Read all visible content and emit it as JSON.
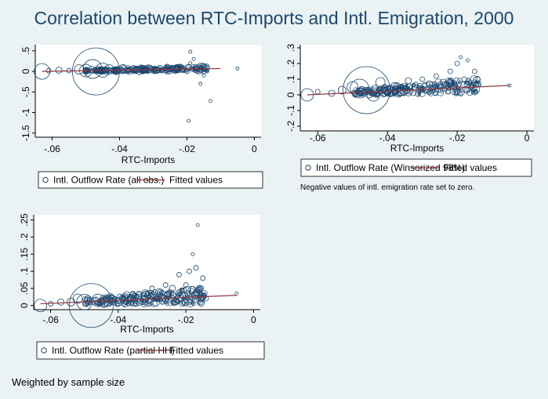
{
  "title": "Correlation between RTC-Imports and Intl. Emigration, 2000",
  "footnote": "Weighted by sample size",
  "colors": {
    "background": "#eaf2f3",
    "title": "#1a476f",
    "markers": "#1a476f",
    "fit_line": "#90353b",
    "plot_bg": "#ffffff"
  },
  "chart_data": [
    {
      "type": "scatter",
      "xlabel": "RTC-Imports",
      "ylabel": "",
      "xlim": [
        -0.065,
        0.002
      ],
      "ylim": [
        -1.6,
        0.65
      ],
      "xticks": [
        -0.06,
        -0.04,
        -0.02,
        0
      ],
      "xtick_labels": [
        "-.06",
        "-.04",
        "-.02",
        "0"
      ],
      "yticks": [
        0.5,
        0,
        -0.5,
        -1,
        -1.5
      ],
      "ytick_labels": [
        ".5",
        "0",
        "-.5",
        "-1",
        "-1.5"
      ],
      "series": [
        {
          "name": "Intl. Outflow Rate (all obs.)",
          "kind": "scatter",
          "points": [
            [
              -0.063,
              0.0,
              10
            ],
            [
              -0.061,
              0.02,
              3
            ],
            [
              -0.058,
              0.03,
              4
            ],
            [
              -0.055,
              0.02,
              3
            ],
            [
              -0.052,
              0.05,
              6
            ],
            [
              -0.05,
              0.02,
              8
            ],
            [
              -0.048,
              0.06,
              12
            ],
            [
              -0.047,
              0.0,
              30
            ],
            [
              -0.045,
              0.03,
              9
            ],
            [
              -0.043,
              0.05,
              6
            ],
            [
              -0.041,
              0.02,
              5
            ],
            [
              -0.039,
              0.07,
              5
            ],
            [
              -0.036,
              0.06,
              4
            ],
            [
              -0.033,
              0.05,
              4
            ],
            [
              -0.031,
              0.1,
              3
            ],
            [
              -0.028,
              0.07,
              4
            ],
            [
              -0.026,
              0.1,
              3
            ],
            [
              -0.024,
              0.06,
              3
            ],
            [
              -0.022,
              0.12,
              3
            ],
            [
              -0.021,
              0.05,
              4
            ],
            [
              -0.02,
              0.0,
              3
            ],
            [
              -0.019,
              0.2,
              2
            ],
            [
              -0.019,
              0.48,
              2
            ],
            [
              -0.018,
              0.3,
              2
            ],
            [
              -0.017,
              0.08,
              3
            ],
            [
              -0.016,
              0.15,
              3
            ],
            [
              -0.015,
              -0.1,
              2
            ],
            [
              -0.016,
              -0.3,
              2
            ],
            [
              -0.014,
              0.0,
              2
            ],
            [
              -0.013,
              -0.72,
              2
            ],
            [
              -0.0195,
              -1.2,
              2
            ],
            [
              -0.005,
              0.07,
              2
            ]
          ]
        },
        {
          "name": "Fitted values",
          "kind": "line",
          "points": [
            [
              -0.063,
              0.0
            ],
            [
              -0.01,
              0.07
            ]
          ]
        }
      ],
      "legend_position": "bottom"
    },
    {
      "type": "scatter",
      "xlabel": "RTC-Imports",
      "ylabel": "",
      "xlim": [
        -0.065,
        0.002
      ],
      "ylim": [
        -0.23,
        0.32
      ],
      "xticks": [
        -0.06,
        -0.04,
        -0.02,
        0
      ],
      "xtick_labels": [
        "-.06",
        "-.04",
        "-.02",
        "0"
      ],
      "yticks": [
        0.3,
        0.2,
        0.1,
        0,
        -0.1,
        -0.2
      ],
      "ytick_labels": [
        ".3",
        ".2",
        ".1",
        "0",
        "-.1",
        "-.2"
      ],
      "series": [
        {
          "name": "Intl. Outflow Rate (Winsorized 98%)",
          "kind": "scatter",
          "points": [
            [
              -0.063,
              0.0,
              8
            ],
            [
              -0.06,
              0.02,
              3
            ],
            [
              -0.056,
              0.01,
              4
            ],
            [
              -0.053,
              0.03,
              5
            ],
            [
              -0.05,
              0.05,
              7
            ],
            [
              -0.048,
              0.04,
              12
            ],
            [
              -0.046,
              0.03,
              30
            ],
            [
              -0.044,
              0.0,
              8
            ],
            [
              -0.042,
              0.08,
              6
            ],
            [
              -0.04,
              0.03,
              5
            ],
            [
              -0.038,
              0.06,
              4
            ],
            [
              -0.036,
              0.02,
              5
            ],
            [
              -0.034,
              0.09,
              4
            ],
            [
              -0.032,
              0.05,
              4
            ],
            [
              -0.03,
              0.1,
              3
            ],
            [
              -0.028,
              0.07,
              4
            ],
            [
              -0.026,
              0.12,
              3
            ],
            [
              -0.024,
              0.08,
              4
            ],
            [
              -0.022,
              0.15,
              3
            ],
            [
              -0.021,
              0.05,
              4
            ],
            [
              -0.02,
              0.2,
              3
            ],
            [
              -0.019,
              0.24,
              2
            ],
            [
              -0.018,
              0.1,
              3
            ],
            [
              -0.017,
              0.22,
              2
            ],
            [
              -0.016,
              0.05,
              3
            ],
            [
              -0.015,
              0.15,
              3
            ],
            [
              -0.014,
              0.08,
              2
            ],
            [
              -0.005,
              0.06,
              2
            ]
          ]
        },
        {
          "name": "Fitted values",
          "kind": "line",
          "points": [
            [
              -0.063,
              0.0
            ],
            [
              -0.005,
              0.06
            ]
          ]
        }
      ],
      "legend_position": "bottom",
      "note": "Negative values of intl. emigration rate set to zero."
    },
    {
      "type": "scatter",
      "xlabel": "RTC-Imports",
      "ylabel": "",
      "xlim": [
        -0.065,
        0.002
      ],
      "ylim": [
        -0.012,
        0.265
      ],
      "xticks": [
        -0.06,
        -0.04,
        -0.02,
        0
      ],
      "xtick_labels": [
        "-.06",
        "-.04",
        "-.02",
        "0"
      ],
      "yticks": [
        0,
        0.05,
        0.1,
        0.15,
        0.2,
        0.25
      ],
      "ytick_labels": [
        "0",
        ".05",
        ".1",
        ".15",
        ".2",
        ".25"
      ],
      "series": [
        {
          "name": "Intl. Outflow Rate (partial HH)",
          "kind": "scatter",
          "points": [
            [
              -0.063,
              0.0,
              8
            ],
            [
              -0.06,
              0.005,
              3
            ],
            [
              -0.057,
              0.01,
              4
            ],
            [
              -0.054,
              0.01,
              5
            ],
            [
              -0.052,
              0.02,
              6
            ],
            [
              -0.05,
              0.01,
              10
            ],
            [
              -0.048,
              0.0,
              28
            ],
            [
              -0.046,
              0.015,
              8
            ],
            [
              -0.044,
              0.01,
              6
            ],
            [
              -0.042,
              0.02,
              5
            ],
            [
              -0.04,
              0.01,
              5
            ],
            [
              -0.038,
              0.02,
              4
            ],
            [
              -0.036,
              0.02,
              4
            ],
            [
              -0.034,
              0.03,
              4
            ],
            [
              -0.032,
              0.02,
              4
            ],
            [
              -0.03,
              0.05,
              3
            ],
            [
              -0.028,
              0.04,
              4
            ],
            [
              -0.026,
              0.06,
              3
            ],
            [
              -0.024,
              0.05,
              4
            ],
            [
              -0.022,
              0.09,
              3
            ],
            [
              -0.021,
              0.03,
              4
            ],
            [
              -0.02,
              0.06,
              3
            ],
            [
              -0.019,
              0.1,
              3
            ],
            [
              -0.018,
              0.15,
              2
            ],
            [
              -0.017,
              0.11,
              3
            ],
            [
              -0.016,
              0.05,
              4
            ],
            [
              -0.0165,
              0.235,
              2
            ],
            [
              -0.015,
              0.08,
              3
            ],
            [
              -0.014,
              0.02,
              3
            ],
            [
              -0.005,
              0.035,
              2
            ]
          ]
        },
        {
          "name": "Fitted values",
          "kind": "line",
          "points": [
            [
              -0.063,
              0.005
            ],
            [
              -0.005,
              0.03
            ]
          ]
        }
      ],
      "legend_position": "bottom"
    }
  ]
}
